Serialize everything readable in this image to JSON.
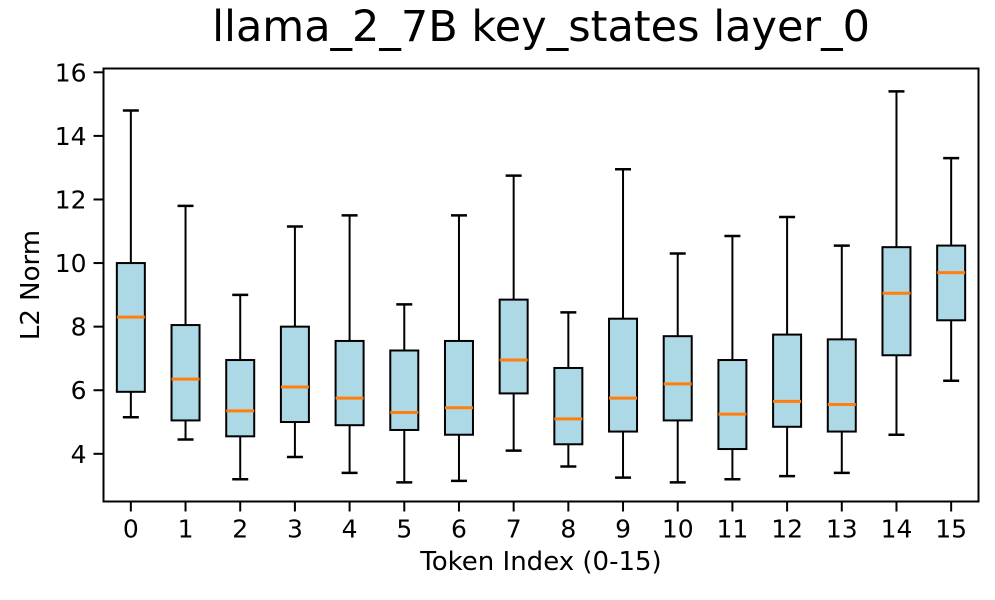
{
  "chart_data": {
    "type": "boxplot",
    "title": "llama_2_7B key_states layer_0",
    "xlabel": "Token Index (0-15)",
    "ylabel": "L2 Norm",
    "categories": [
      "0",
      "1",
      "2",
      "3",
      "4",
      "5",
      "6",
      "7",
      "8",
      "9",
      "10",
      "11",
      "12",
      "13",
      "14",
      "15"
    ],
    "yticks": [
      4,
      6,
      8,
      10,
      12,
      14,
      16
    ],
    "ylim": [
      2.5,
      16.12
    ],
    "grid": false,
    "legend": null,
    "colors": {
      "box_fill": "#ADD8E6",
      "box_edge": "#000000",
      "whisker": "#000000",
      "median": "#ff7f0e",
      "axis": "#000000",
      "background": "#ffffff"
    },
    "boxes": [
      {
        "whislo": 5.15,
        "q1": 5.95,
        "med": 8.3,
        "q3": 10.0,
        "whishi": 14.8
      },
      {
        "whislo": 4.45,
        "q1": 5.05,
        "med": 6.35,
        "q3": 8.05,
        "whishi": 11.8
      },
      {
        "whislo": 3.2,
        "q1": 4.55,
        "med": 5.35,
        "q3": 6.95,
        "whishi": 9.0
      },
      {
        "whislo": 3.9,
        "q1": 5.0,
        "med": 6.1,
        "q3": 8.0,
        "whishi": 11.15
      },
      {
        "whislo": 3.4,
        "q1": 4.9,
        "med": 5.75,
        "q3": 7.55,
        "whishi": 11.5
      },
      {
        "whislo": 3.1,
        "q1": 4.75,
        "med": 5.3,
        "q3": 7.25,
        "whishi": 8.7
      },
      {
        "whislo": 3.15,
        "q1": 4.6,
        "med": 5.45,
        "q3": 7.55,
        "whishi": 11.5
      },
      {
        "whislo": 4.1,
        "q1": 5.9,
        "med": 6.95,
        "q3": 8.85,
        "whishi": 12.75
      },
      {
        "whislo": 3.6,
        "q1": 4.3,
        "med": 5.1,
        "q3": 6.7,
        "whishi": 8.45
      },
      {
        "whislo": 3.25,
        "q1": 4.7,
        "med": 5.75,
        "q3": 8.25,
        "whishi": 12.95
      },
      {
        "whislo": 3.1,
        "q1": 5.05,
        "med": 6.2,
        "q3": 7.7,
        "whishi": 10.3
      },
      {
        "whislo": 3.2,
        "q1": 4.15,
        "med": 5.25,
        "q3": 6.95,
        "whishi": 10.85
      },
      {
        "whislo": 3.3,
        "q1": 4.85,
        "med": 5.65,
        "q3": 7.75,
        "whishi": 11.45
      },
      {
        "whislo": 3.4,
        "q1": 4.7,
        "med": 5.55,
        "q3": 7.6,
        "whishi": 10.55
      },
      {
        "whislo": 4.6,
        "q1": 7.1,
        "med": 9.05,
        "q3": 10.5,
        "whishi": 15.4
      },
      {
        "whislo": 6.3,
        "q1": 8.2,
        "med": 9.7,
        "q3": 10.55,
        "whishi": 13.3
      }
    ]
  }
}
